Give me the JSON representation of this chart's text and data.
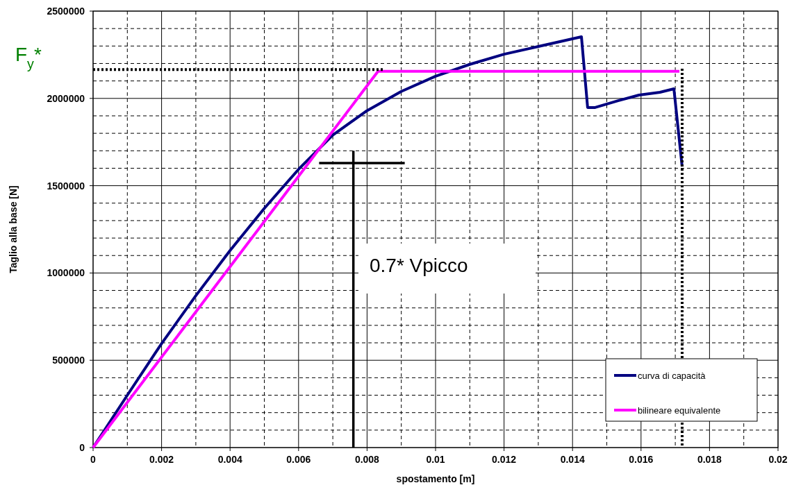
{
  "chart_data": {
    "type": "line",
    "xlabel": "spostamento [m]",
    "ylabel": "Taglio alla base [N]",
    "xlim": [
      0,
      0.02
    ],
    "xticks": [
      0,
      0.002,
      0.004,
      0.006,
      0.008,
      0.01,
      0.012,
      0.014,
      0.016,
      0.018,
      0.02
    ],
    "ylim": [
      0,
      2500000
    ],
    "yticks": [
      0,
      500000,
      1000000,
      1500000,
      2000000,
      2500000
    ],
    "grid": true,
    "legend": "bottom right",
    "line_style": "solid",
    "series": [
      {
        "name": "curva di capacità",
        "color": "#000080",
        "x": [
          0,
          0.001,
          0.002,
          0.003,
          0.004,
          0.005,
          0.006,
          0.007,
          0.008,
          0.009,
          0.01,
          0.011,
          0.012,
          0.013,
          0.01426,
          0.01444,
          0.01466,
          0.01533,
          0.01594,
          0.01655,
          0.01696,
          0.0172
        ],
        "values": [
          0,
          300000,
          596000,
          870000,
          1129000,
          1370000,
          1594000,
          1790000,
          1930000,
          2040000,
          2127000,
          2195000,
          2253000,
          2297000,
          2353000,
          1948000,
          1948000,
          1987000,
          2019000,
          2035000,
          2055000,
          1610000
        ]
      },
      {
        "name": "bilineare equivalente",
        "color": "#ff00ff",
        "x": [
          0,
          0.00832,
          0.01712
        ],
        "values": [
          0,
          2155000,
          2155000
        ]
      },
      {
        "color": "#000000",
        "line_style": "dotted",
        "x": [
          0,
          0.0085
        ],
        "values": [
          2165000,
          2165000
        ]
      },
      {
        "color": "#000000",
        "line_style": "dotted",
        "x": [
          0.0172,
          0.0172
        ],
        "values": [
          2170000,
          0
        ]
      },
      {
        "color": "#000000",
        "x": [
          0.0076,
          0.0076
        ],
        "values": [
          0,
          1700000
        ]
      },
      {
        "color": "#000000",
        "x": [
          0.0066,
          0.0091
        ],
        "values": [
          1630000,
          1630000
        ]
      }
    ],
    "annotations": [
      {
        "text": "F$_{y}$*",
        "x": 0,
        "y": 2165000
      },
      "0.7* Vpicco"
    ]
  }
}
